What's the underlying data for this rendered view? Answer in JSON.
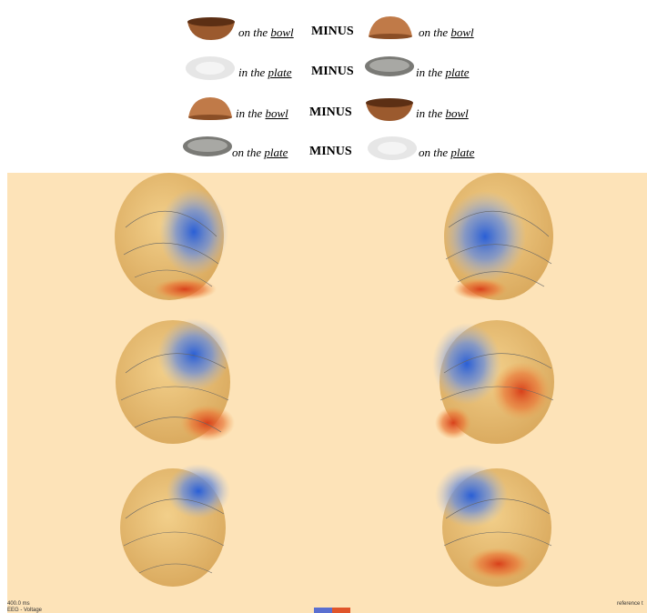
{
  "conditions": [
    {
      "left": {
        "prep": "on the",
        "noun": "bowl"
      },
      "operator": "MINUS",
      "right": {
        "prep": "on the",
        "noun": "bowl"
      }
    },
    {
      "left": {
        "prep": "in the",
        "noun": "plate"
      },
      "operator": "MINUS",
      "right": {
        "prep": "in the",
        "noun": "plate"
      }
    },
    {
      "left": {
        "prep": "in the",
        "noun": "bowl"
      },
      "operator": "MINUS",
      "right": {
        "prep": "in the",
        "noun": "bowl"
      }
    },
    {
      "left": {
        "prep": "on the",
        "noun": "plate"
      },
      "operator": "MINUS",
      "right": {
        "prep": "on the",
        "noun": "plate"
      }
    }
  ],
  "panel": {
    "time": "400.0 ms",
    "measure": "EEG - Voltage",
    "reference": "reference t"
  }
}
